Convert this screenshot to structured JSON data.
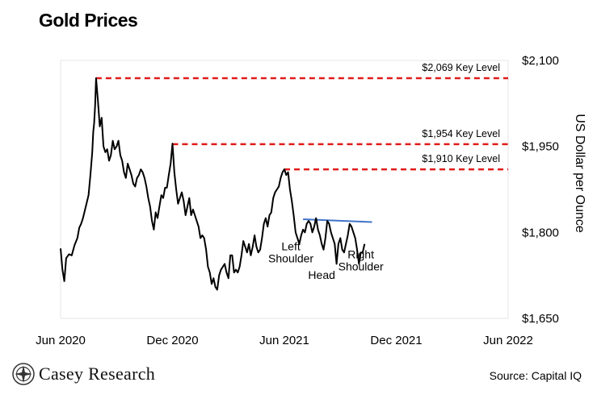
{
  "title": "Gold Prices",
  "source_label": "Source: Capital IQ",
  "brand": {
    "name": "Casey Research",
    "logo_icon": "casey-research-logo-icon"
  },
  "colors": {
    "price_line": "#000000",
    "key_level": "#e01b1b",
    "neckline": "#3f74c9"
  },
  "chart_data": {
    "type": "line",
    "title": "Gold Prices",
    "xlabel": "",
    "ylabel": "US Dollar per Ounce",
    "ylim": [
      1650,
      2100
    ],
    "y_ticks": [
      {
        "value": 1650,
        "label": "$1,650"
      },
      {
        "value": 1800,
        "label": "$1,800"
      },
      {
        "value": 1950,
        "label": "$1,950"
      },
      {
        "value": 2100,
        "label": "$2,100"
      }
    ],
    "x_ticks": [
      {
        "value": 0,
        "label": "Jun 2020"
      },
      {
        "value": 6,
        "label": "Dec 2020"
      },
      {
        "value": 12,
        "label": "Jun 2021"
      },
      {
        "value": 18,
        "label": "Dec 2021"
      },
      {
        "value": 24,
        "label": "Jun 2022"
      }
    ],
    "x_unit": "months since Jun 2020",
    "series": [
      {
        "x": [
          0,
          0.1,
          0.2,
          0.3,
          0.45,
          0.6,
          0.75,
          0.9,
          1.0,
          1.1,
          1.2,
          1.35,
          1.5,
          1.6,
          1.7,
          1.75,
          1.8,
          1.85,
          1.9,
          2.0,
          2.1,
          2.2,
          2.3,
          2.4,
          2.5,
          2.6,
          2.7,
          2.8,
          2.9,
          3.0,
          3.1,
          3.2,
          3.3,
          3.4,
          3.5,
          3.6,
          3.7,
          3.8,
          3.9,
          4.0,
          4.1,
          4.2,
          4.3,
          4.4,
          4.5,
          4.6,
          4.7,
          4.8,
          4.9,
          5.0,
          5.1,
          5.2,
          5.3,
          5.4,
          5.5,
          5.6,
          5.7,
          5.8,
          5.9,
          6.0,
          6.1,
          6.2,
          6.3,
          6.4,
          6.5,
          6.6,
          6.7,
          6.8,
          6.9,
          7.0,
          7.1,
          7.2,
          7.3,
          7.4,
          7.5,
          7.6,
          7.7,
          7.8,
          7.9,
          8.0,
          8.1,
          8.2,
          8.3,
          8.4,
          8.5,
          8.6,
          8.7,
          8.8,
          8.9,
          9.0,
          9.1,
          9.2,
          9.3,
          9.4,
          9.5,
          9.6,
          9.7,
          9.8,
          9.9,
          10.0,
          10.1,
          10.2,
          10.3,
          10.4,
          10.5,
          10.6,
          10.7,
          10.8,
          10.9,
          11.0,
          11.1,
          11.2,
          11.3,
          11.4,
          11.5,
          11.6,
          11.7,
          11.8,
          11.9,
          12.0,
          12.1,
          12.2,
          12.3,
          12.4,
          12.5,
          12.6,
          12.7,
          12.8,
          12.9,
          13.0,
          13.1,
          13.2,
          13.3,
          13.4,
          13.5,
          13.6,
          13.7,
          13.8,
          13.9,
          14.0,
          14.1,
          14.2,
          14.3,
          14.4,
          14.5,
          14.6,
          14.7,
          14.8,
          14.9,
          15.0,
          15.1,
          15.2,
          15.3,
          15.4,
          15.5,
          15.6,
          15.7,
          15.8,
          15.9,
          16.0,
          16.1,
          16.2,
          16.3
        ],
        "y": [
          1772,
          1735,
          1715,
          1755,
          1762,
          1760,
          1778,
          1790,
          1808,
          1815,
          1825,
          1845,
          1865,
          1900,
          1940,
          1975,
          1990,
          2020,
          2069,
          2030,
          1985,
          2000,
          1950,
          1940,
          1945,
          1925,
          1935,
          1960,
          1945,
          1950,
          1960,
          1935,
          1925,
          1905,
          1895,
          1920,
          1910,
          1900,
          1885,
          1880,
          1895,
          1900,
          1910,
          1905,
          1895,
          1880,
          1860,
          1845,
          1820,
          1805,
          1835,
          1825,
          1845,
          1865,
          1860,
          1878,
          1878,
          1900,
          1920,
          1955,
          1905,
          1875,
          1850,
          1860,
          1870,
          1855,
          1830,
          1845,
          1860,
          1830,
          1840,
          1830,
          1820,
          1810,
          1790,
          1795,
          1790,
          1770,
          1740,
          1730,
          1710,
          1720,
          1705,
          1700,
          1725,
          1735,
          1740,
          1745,
          1730,
          1720,
          1760,
          1760,
          1730,
          1735,
          1730,
          1740,
          1760,
          1785,
          1775,
          1765,
          1780,
          1760,
          1775,
          1795,
          1775,
          1765,
          1770,
          1790,
          1815,
          1825,
          1810,
          1830,
          1835,
          1860,
          1870,
          1875,
          1880,
          1895,
          1905,
          1910,
          1900,
          1905,
          1875,
          1855,
          1830,
          1800,
          1790,
          1780,
          1795,
          1805,
          1800,
          1815,
          1820,
          1815,
          1800,
          1810,
          1825,
          1805,
          1795,
          1780,
          1770,
          1790,
          1820,
          1815,
          1800,
          1790,
          1780,
          1745,
          1780,
          1790,
          1770,
          1765,
          1780,
          1795,
          1815,
          1810,
          1800,
          1790,
          1770,
          1745,
          1765,
          1765,
          1780
        ]
      }
    ],
    "key_levels": [
      {
        "value": 2069,
        "label": "$2,069 Key Level",
        "x_start": 1.9
      },
      {
        "value": 1954,
        "label": "$1,954 Key Level",
        "x_start": 6.0
      },
      {
        "value": 1910,
        "label": "$1,910 Key Level",
        "x_start": 12.0
      }
    ],
    "neckline": {
      "x": [
        13.0,
        16.7
      ],
      "y": [
        1823,
        1818
      ]
    },
    "annotations": [
      {
        "text": "Left",
        "x": 12.35,
        "y": 1769
      },
      {
        "text": "Shoulder",
        "x": 12.35,
        "y": 1748
      },
      {
        "text": "Head",
        "x": 14.0,
        "y": 1719
      },
      {
        "text": "Right",
        "x": 16.1,
        "y": 1755
      },
      {
        "text": "Shoulder",
        "x": 16.1,
        "y": 1734
      }
    ],
    "grid": false,
    "legend": "none"
  }
}
